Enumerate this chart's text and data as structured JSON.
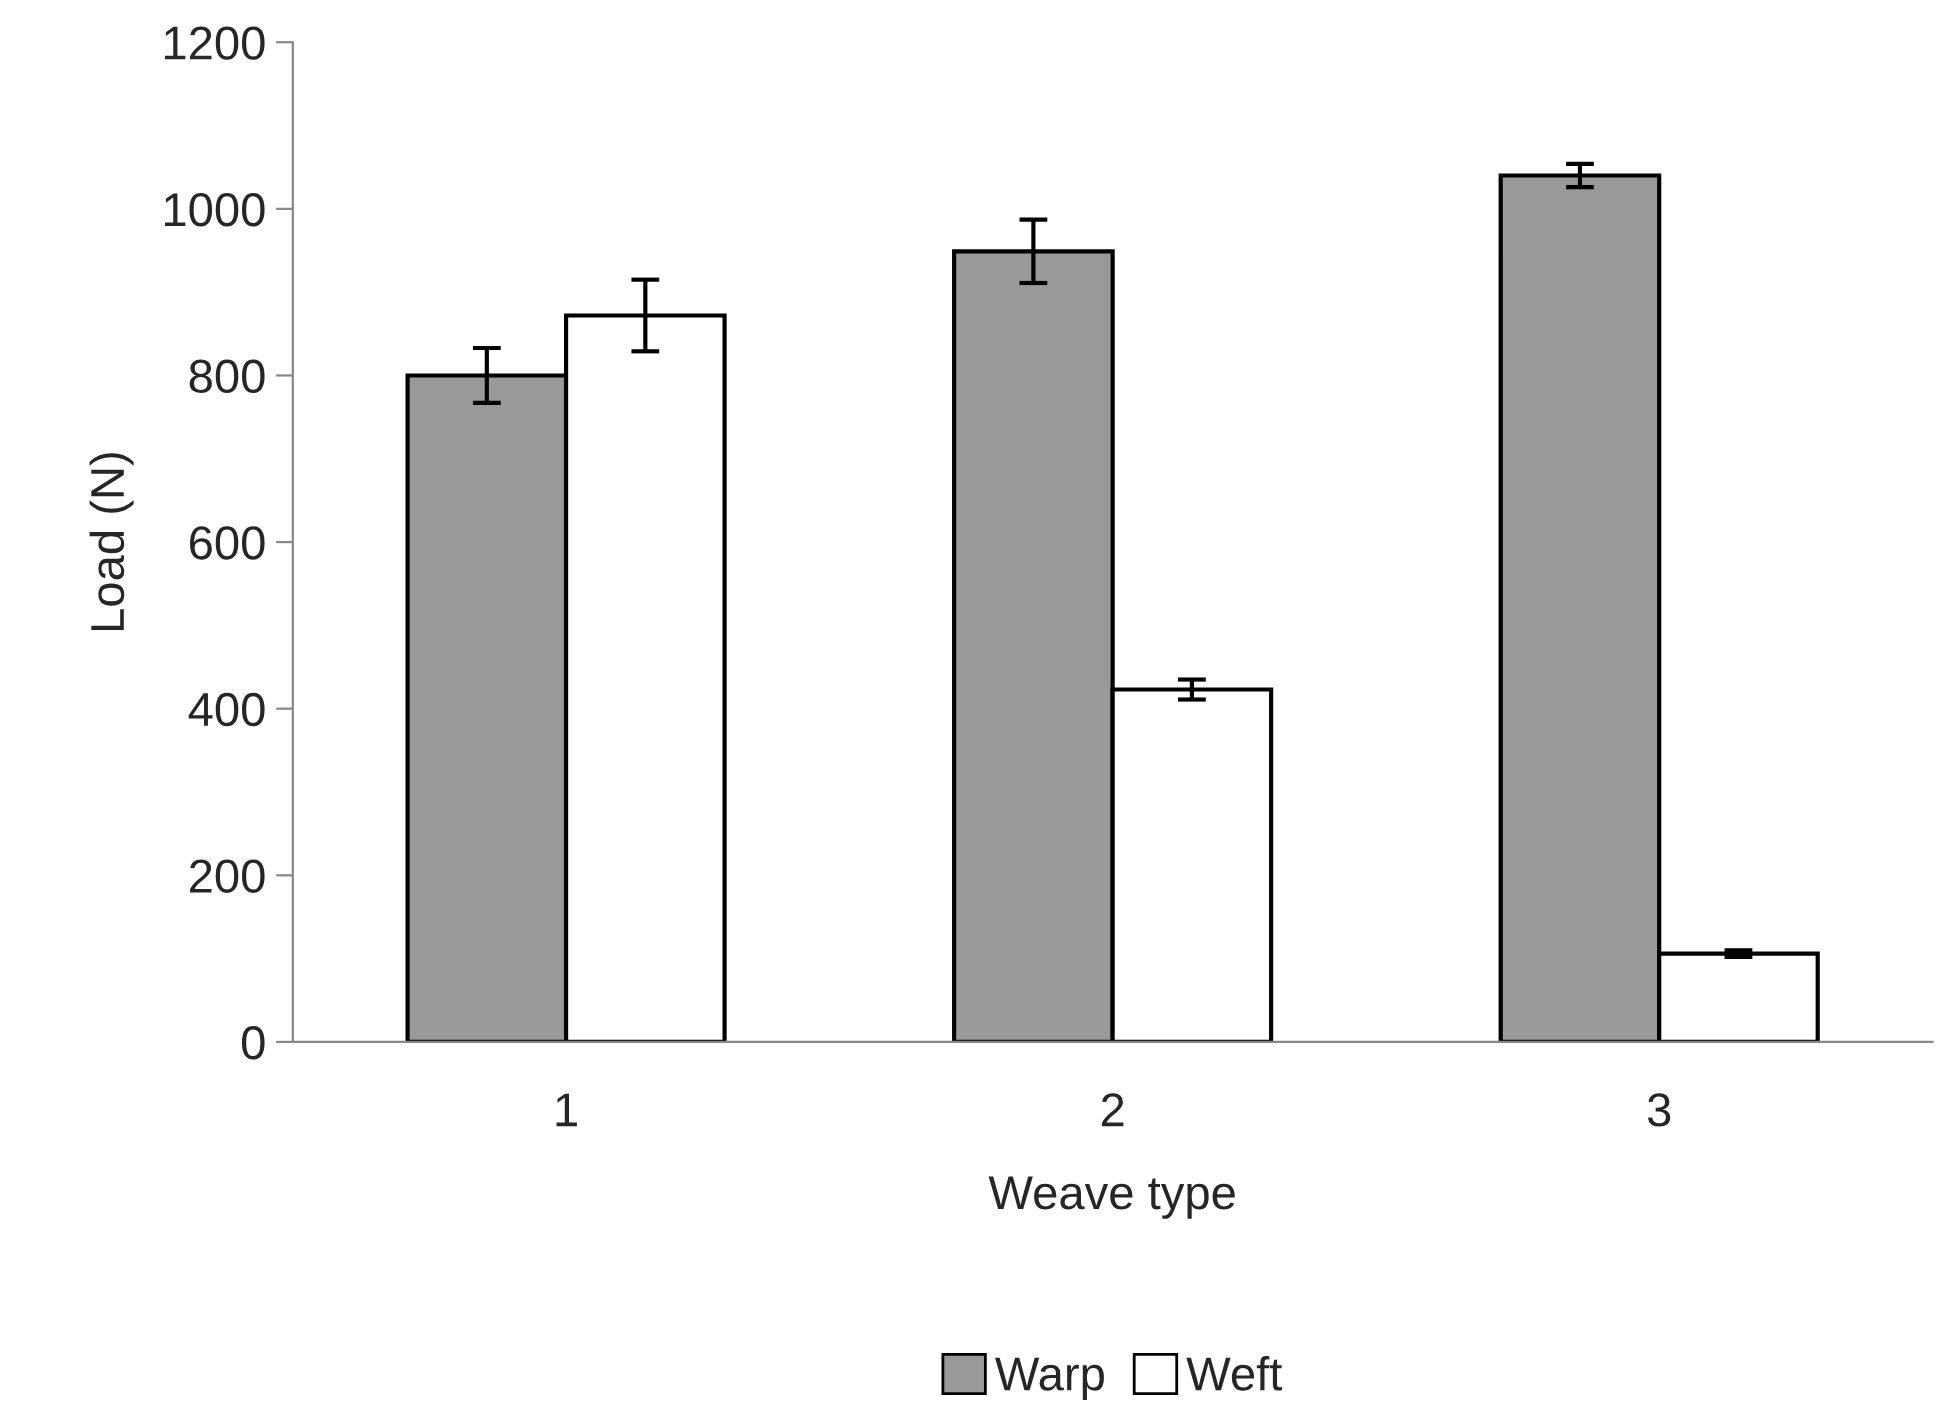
{
  "chart_data": {
    "type": "bar",
    "xlabel": "Weave type",
    "ylabel": "Load (N)",
    "categories": [
      "1",
      "2",
      "3"
    ],
    "series": [
      {
        "name": "Warp",
        "color": "#999999",
        "values": [
          800,
          949,
          1040
        ],
        "errors": [
          33,
          38,
          14
        ]
      },
      {
        "name": "Weft",
        "color": "#ffffff",
        "values": [
          872,
          423,
          106
        ],
        "errors": [
          43,
          12,
          4
        ]
      }
    ],
    "ylim": [
      0,
      1200
    ],
    "yticks": [
      0,
      200,
      400,
      600,
      800,
      1000,
      1200
    ],
    "grid": false,
    "legend": "bottom"
  }
}
